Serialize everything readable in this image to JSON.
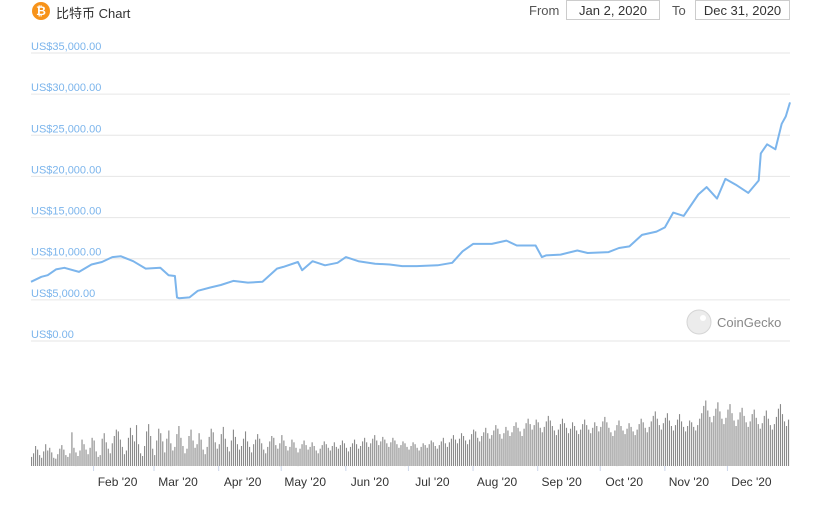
{
  "header": {
    "coin_icon": "bitcoin-icon",
    "coin_glyph": "₿",
    "title": "比特币 Chart",
    "from_label": "From",
    "from_date": "Jan 2, 2020",
    "to_label": "To",
    "to_date": "Dec 31, 2020"
  },
  "watermark": {
    "text": "CoinGecko",
    "icon": "gecko-icon"
  },
  "colors": {
    "line": "#7cb5ec",
    "grid": "#e6e6e6",
    "volume": "#8a8a8a",
    "accent": "#f7931a"
  },
  "chart_data": {
    "type": "line",
    "title": "",
    "xlabel": "",
    "ylabel": "",
    "ylim": [
      0,
      35000
    ],
    "yticks": [
      0,
      5000,
      10000,
      15000,
      20000,
      25000,
      30000,
      35000
    ],
    "ytick_labels": [
      "US$0.00",
      "US$5,000.00",
      "US$10,000.00",
      "US$15,000.00",
      "US$20,000.00",
      "US$25,000.00",
      "US$30,000.00",
      "US$35,000.00"
    ],
    "xtick_labels": [
      "Feb '20",
      "Mar '20",
      "Apr '20",
      "May '20",
      "Jun '20",
      "Jul '20",
      "Aug '20",
      "Sep '20",
      "Oct '20",
      "Nov '20",
      "Dec '20"
    ],
    "xtick_dates": [
      "2020-02-01",
      "2020-03-01",
      "2020-04-01",
      "2020-05-01",
      "2020-06-01",
      "2020-07-01",
      "2020-08-01",
      "2020-09-01",
      "2020-10-01",
      "2020-11-01",
      "2020-12-01"
    ],
    "x_range": [
      "2020-01-02",
      "2020-12-31"
    ],
    "grid": true,
    "legend": "none",
    "series": [
      {
        "x": [
          "2020-01-02",
          "2020-01-07",
          "2020-01-10",
          "2020-01-14",
          "2020-01-18",
          "2020-01-25",
          "2020-01-31",
          "2020-02-05",
          "2020-02-10",
          "2020-02-14",
          "2020-02-20",
          "2020-02-26",
          "2020-03-04",
          "2020-03-08",
          "2020-03-11",
          "2020-03-12",
          "2020-03-13",
          "2020-03-18",
          "2020-03-22",
          "2020-03-28",
          "2020-04-02",
          "2020-04-08",
          "2020-04-15",
          "2020-04-22",
          "2020-04-29",
          "2020-05-02",
          "2020-05-09",
          "2020-05-11",
          "2020-05-16",
          "2020-05-22",
          "2020-05-28",
          "2020-06-01",
          "2020-06-07",
          "2020-06-15",
          "2020-06-22",
          "2020-06-28",
          "2020-07-05",
          "2020-07-15",
          "2020-07-22",
          "2020-07-27",
          "2020-08-01",
          "2020-08-10",
          "2020-08-17",
          "2020-08-22",
          "2020-08-31",
          "2020-09-03",
          "2020-09-05",
          "2020-09-12",
          "2020-09-20",
          "2020-09-25",
          "2020-10-05",
          "2020-10-10",
          "2020-10-15",
          "2020-10-21",
          "2020-10-28",
          "2020-11-01",
          "2020-11-05",
          "2020-11-10",
          "2020-11-17",
          "2020-11-21",
          "2020-11-26",
          "2020-11-30",
          "2020-12-05",
          "2020-12-11",
          "2020-12-16",
          "2020-12-17",
          "2020-12-20",
          "2020-12-24",
          "2020-12-27",
          "2020-12-29",
          "2020-12-31"
        ],
        "values": [
          7200,
          7800,
          8000,
          8700,
          8900,
          8400,
          9300,
          9600,
          10200,
          10300,
          9700,
          8800,
          8900,
          8000,
          7900,
          5300,
          5200,
          5300,
          6100,
          6500,
          6800,
          7300,
          7100,
          7200,
          8800,
          9000,
          9600,
          8600,
          9700,
          9200,
          9500,
          10200,
          9700,
          9400,
          9300,
          9100,
          9100,
          9200,
          9500,
          10900,
          11800,
          11800,
          12200,
          11600,
          11600,
          10200,
          10400,
          10500,
          11000,
          10700,
          10800,
          11300,
          11500,
          12900,
          13300,
          13800,
          15600,
          15200,
          17800,
          18700,
          17300,
          19700,
          19000,
          18000,
          19500,
          22800,
          23900,
          23300,
          26400,
          27300,
          29000
        ]
      }
    ],
    "volume": {
      "ylim": [
        0,
        100
      ],
      "values": [
        10,
        14,
        22,
        18,
        12,
        9,
        16,
        24,
        17,
        20,
        15,
        9,
        8,
        13,
        19,
        23,
        18,
        12,
        10,
        14,
        37,
        20,
        15,
        11,
        17,
        29,
        24,
        18,
        13,
        20,
        31,
        28,
        16,
        10,
        12,
        30,
        36,
        26,
        19,
        14,
        25,
        33,
        40,
        38,
        29,
        21,
        13,
        17,
        31,
        42,
        34,
        27,
        45,
        24,
        14,
        11,
        22,
        38,
        46,
        33,
        19,
        12,
        28,
        41,
        36,
        27,
        15,
        30,
        39,
        25,
        17,
        21,
        35,
        44,
        31,
        22,
        14,
        19,
        33,
        40,
        28,
        20,
        24,
        36,
        29,
        18,
        13,
        21,
        32,
        41,
        37,
        26,
        19,
        24,
        35,
        43,
        30,
        21,
        16,
        28,
        40,
        32,
        24,
        18,
        22,
        30,
        38,
        27,
        21,
        15,
        24,
        29,
        35,
        30,
        25,
        18,
        14,
        21,
        27,
        33,
        31,
        23,
        19,
        25,
        34,
        28,
        22,
        17,
        21,
        29,
        26,
        20,
        15,
        19,
        24,
        28,
        23,
        18,
        21,
        26,
        22,
        17,
        14,
        19,
        23,
        27,
        24,
        20,
        17,
        22,
        26,
        21,
        19,
        23,
        28,
        25,
        20,
        16,
        21,
        25,
        29,
        24,
        19,
        22,
        27,
        31,
        26,
        21,
        25,
        30,
        34,
        28,
        23,
        27,
        32,
        29,
        25,
        21,
        26,
        31,
        28,
        24,
        20,
        23,
        27,
        25,
        21,
        18,
        22,
        26,
        24,
        20,
        17,
        21,
        25,
        23,
        20,
        24,
        28,
        26,
        22,
        19,
        23,
        27,
        31,
        25,
        21,
        26,
        30,
        34,
        29,
        25,
        30,
        36,
        33,
        28,
        24,
        29,
        35,
        40,
        38,
        31,
        27,
        33,
        37,
        42,
        36,
        30,
        34,
        39,
        45,
        41,
        35,
        30,
        36,
        43,
        39,
        33,
        37,
        44,
        48,
        42,
        38,
        33,
        41,
        47,
        52,
        46,
        40,
        45,
        51,
        48,
        42,
        37,
        43,
        49,
        55,
        50,
        44,
        39,
        34,
        40,
        46,
        52,
        47,
        42,
        36,
        41,
        48,
        44,
        39,
        35,
        40,
        46,
        51,
        45,
        40,
        36,
        42,
        48,
        44,
        38,
        43,
        49,
        54,
        48,
        42,
        37,
        33,
        39,
        45,
        50,
        44,
        39,
        35,
        41,
        47,
        43,
        38,
        34,
        40,
        46,
        52,
        48,
        42,
        37,
        43,
        49,
        55,
        60,
        52,
        45,
        40,
        47,
        53,
        58,
        50,
        44,
        39,
        45,
        51,
        57,
        49,
        43,
        38,
        44,
        50,
        48,
        43,
        39,
        45,
        52,
        58,
        66,
        72,
        61,
        54,
        48,
        55,
        63,
        70,
        60,
        52,
        46,
        53,
        62,
        68,
        58,
        50,
        44,
        51,
        59,
        64,
        55,
        48,
        43,
        49,
        57,
        62,
        53,
        46,
        41,
        47,
        55,
        61,
        52,
        45,
        40,
        46,
        54,
        63,
        68,
        57,
        49,
        44,
        51
      ]
    }
  }
}
